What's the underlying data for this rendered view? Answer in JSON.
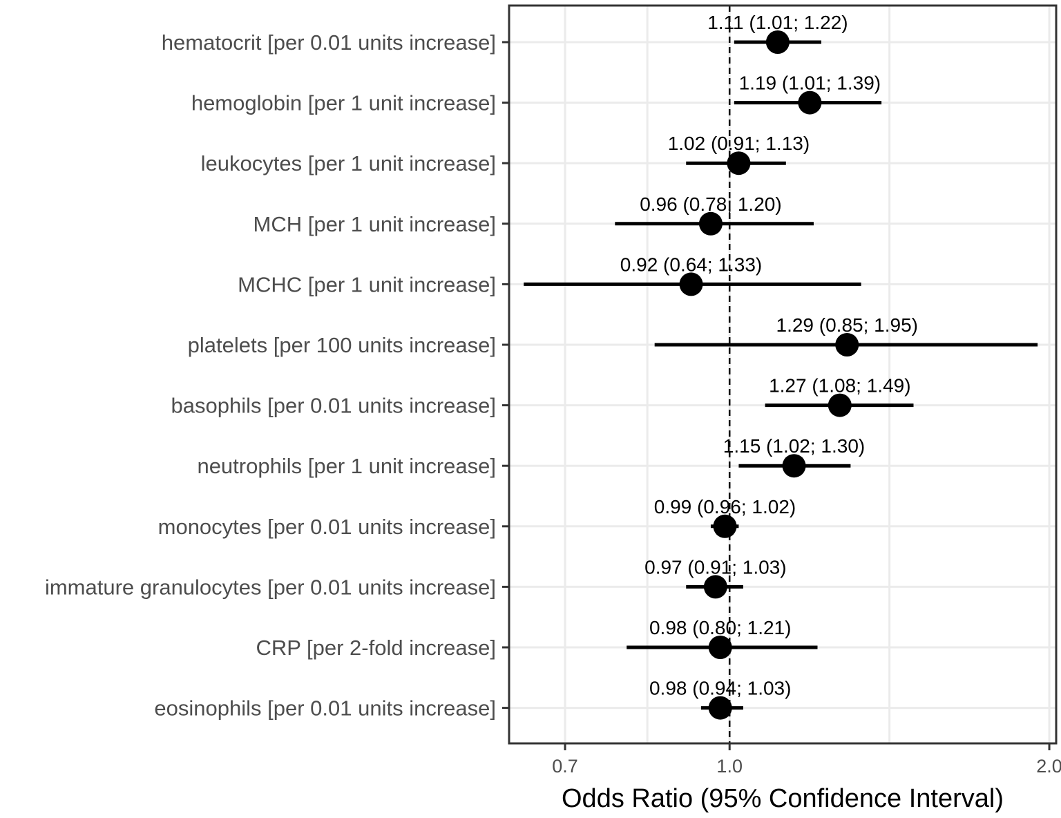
{
  "chart_data": {
    "type": "forest",
    "title": "",
    "xlabel": "Odds Ratio (95% Confidence Interval)",
    "ylabel": "",
    "x_scale": "log",
    "xlim": [
      0.62,
      2.03
    ],
    "x_ticks": [
      {
        "value": 0.7,
        "label": "0.7"
      },
      {
        "value": 1.0,
        "label": "1.0"
      },
      {
        "value": 2.0,
        "label": "2.0"
      }
    ],
    "x_minor_gridlines": [
      0.8367,
      1.4142
    ],
    "reference_line": 1.0,
    "rows": [
      {
        "label": "hematocrit [per 0.01 units increase]",
        "or": 1.11,
        "lower": 1.01,
        "upper": 1.22,
        "text": "1.11 (1.01; 1.22)"
      },
      {
        "label": "hemoglobin [per 1 unit increase]",
        "or": 1.19,
        "lower": 1.01,
        "upper": 1.39,
        "text": "1.19 (1.01; 1.39)"
      },
      {
        "label": "leukocytes [per 1 unit increase]",
        "or": 1.02,
        "lower": 0.91,
        "upper": 1.13,
        "text": "1.02 (0.91; 1.13)"
      },
      {
        "label": "MCH [per 1 unit increase]",
        "or": 0.96,
        "lower": 0.78,
        "upper": 1.2,
        "text": "0.96 (0.78; 1.20)"
      },
      {
        "label": "MCHC [per 1 unit increase]",
        "or": 0.92,
        "lower": 0.64,
        "upper": 1.33,
        "text": "0.92 (0.64; 1.33)"
      },
      {
        "label": "platelets [per 100 units increase]",
        "or": 1.29,
        "lower": 0.85,
        "upper": 1.95,
        "text": "1.29 (0.85; 1.95)"
      },
      {
        "label": "basophils [per 0.01 units increase]",
        "or": 1.27,
        "lower": 1.08,
        "upper": 1.49,
        "text": "1.27 (1.08; 1.49)"
      },
      {
        "label": "neutrophils [per 1 unit increase]",
        "or": 1.15,
        "lower": 1.02,
        "upper": 1.3,
        "text": "1.15 (1.02; 1.30)"
      },
      {
        "label": "monocytes [per 0.01 units increase]",
        "or": 0.99,
        "lower": 0.96,
        "upper": 1.02,
        "text": "0.99 (0.96; 1.02)"
      },
      {
        "label": "immature granulocytes [per 0.01 units increase]",
        "or": 0.97,
        "lower": 0.91,
        "upper": 1.03,
        "text": "0.97 (0.91; 1.03)"
      },
      {
        "label": "CRP [per 2-fold increase]",
        "or": 0.98,
        "lower": 0.8,
        "upper": 1.21,
        "text": "0.98 (0.80; 1.21)"
      },
      {
        "label": "eosinophils [per 0.01 units increase]",
        "or": 0.98,
        "lower": 0.94,
        "upper": 1.03,
        "text": "0.98 (0.94; 1.03)"
      }
    ]
  }
}
